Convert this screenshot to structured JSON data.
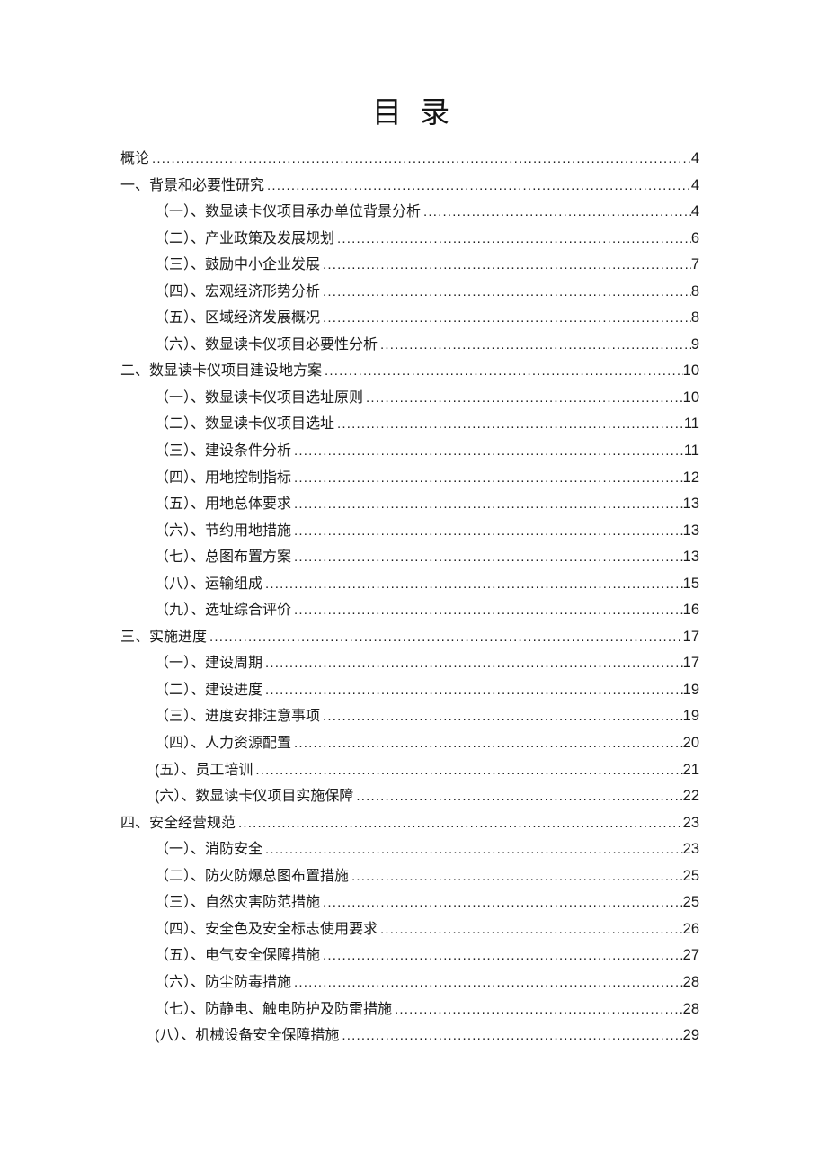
{
  "document": {
    "title": "目 录"
  },
  "toc": {
    "entries": [
      {
        "label": "概论",
        "page": "4",
        "level": 0
      },
      {
        "label": "一、背景和必要性研究",
        "page": "4",
        "level": 0
      },
      {
        "label": "（一）、数显读卡仪项目承办单位背景分析",
        "page": "4",
        "level": 1
      },
      {
        "label": "（二）、产业政策及发展规划",
        "page": "6",
        "level": 1
      },
      {
        "label": "（三）、鼓励中小企业发展",
        "page": "7",
        "level": 1
      },
      {
        "label": "（四）、宏观经济形势分析",
        "page": "8",
        "level": 1
      },
      {
        "label": "（五）、区域经济发展概况",
        "page": "8",
        "level": 1
      },
      {
        "label": "（六）、数显读卡仪项目必要性分析",
        "page": "9",
        "level": 1
      },
      {
        "label": "二、数显读卡仪项目建设地方案",
        "page": "10",
        "level": 0
      },
      {
        "label": "（一）、数显读卡仪项目选址原则",
        "page": "10",
        "level": 1
      },
      {
        "label": "（二）、数显读卡仪项目选址",
        "page": "11",
        "level": 1
      },
      {
        "label": "（三）、建设条件分析",
        "page": "11",
        "level": 1
      },
      {
        "label": "（四）、用地控制指标",
        "page": "12",
        "level": 1
      },
      {
        "label": "（五）、用地总体要求",
        "page": "13",
        "level": 1
      },
      {
        "label": "（六）、节约用地措施",
        "page": "13",
        "level": 1
      },
      {
        "label": "（七）、总图布置方案",
        "page": "13",
        "level": 1
      },
      {
        "label": "（八）、运输组成",
        "page": "15",
        "level": 1
      },
      {
        "label": "（九）、选址综合评价",
        "page": "16",
        "level": 1
      },
      {
        "label": "三、实施进度",
        "page": "17",
        "level": 0
      },
      {
        "label": "（一）、建设周期",
        "page": "17",
        "level": 1
      },
      {
        "label": "（二）、建设进度",
        "page": "19",
        "level": 1
      },
      {
        "label": "（三）、进度安排注意事项",
        "page": "19",
        "level": 1
      },
      {
        "label": "（四）、人力资源配置",
        "page": "20",
        "level": 1
      },
      {
        "label": "(五）、员工培训",
        "page": "21",
        "level": 1
      },
      {
        "label": "(六）、数显读卡仪项目实施保障",
        "page": "22",
        "level": 1
      },
      {
        "label": "四、安全经营规范",
        "page": "23",
        "level": 0
      },
      {
        "label": "（一）、消防安全",
        "page": "23",
        "level": 1
      },
      {
        "label": "（二）、防火防爆总图布置措施",
        "page": "25",
        "level": 1
      },
      {
        "label": "（三）、自然灾害防范措施",
        "page": "25",
        "level": 1
      },
      {
        "label": "（四）、安全色及安全标志使用要求",
        "page": "26",
        "level": 1
      },
      {
        "label": "（五）、电气安全保障措施",
        "page": "27",
        "level": 1
      },
      {
        "label": "（六）、防尘防毒措施",
        "page": "28",
        "level": 1
      },
      {
        "label": "（七）、防静电、触电防护及防雷措施",
        "page": "28",
        "level": 1
      },
      {
        "label": "(八）、机械设备安全保障措施",
        "page": "29",
        "level": 1
      }
    ]
  }
}
